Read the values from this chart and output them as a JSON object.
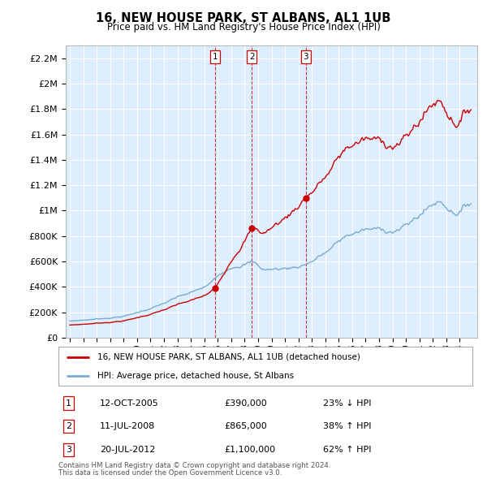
{
  "title": "16, NEW HOUSE PARK, ST ALBANS, AL1 1UB",
  "subtitle": "Price paid vs. HM Land Registry's House Price Index (HPI)",
  "hpi_label": "HPI: Average price, detached house, St Albans",
  "house_label": "16, NEW HOUSE PARK, ST ALBANS, AL1 1UB (detached house)",
  "transactions": [
    {
      "num": 1,
      "date": "12-OCT-2005",
      "year": 2005.79,
      "price": 390000,
      "pct": "23% ↓ HPI"
    },
    {
      "num": 2,
      "date": "11-JUL-2008",
      "year": 2008.53,
      "price": 865000,
      "pct": "38% ↑ HPI"
    },
    {
      "num": 3,
      "date": "20-JUL-2012",
      "year": 2012.55,
      "price": 1100000,
      "pct": "62% ↑ HPI"
    }
  ],
  "footnote1": "Contains HM Land Registry data © Crown copyright and database right 2024.",
  "footnote2": "This data is licensed under the Open Government Licence v3.0.",
  "house_color": "#cc0000",
  "hpi_color": "#7aaad0",
  "vline_color": "#cc0000",
  "bg_color": "#ffffff",
  "plot_bg_color": "#ddeeff",
  "grid_color": "#ffffff",
  "ylim": [
    0,
    2300000
  ],
  "yticks": [
    0,
    200000,
    400000,
    600000,
    800000,
    1000000,
    1200000,
    1400000,
    1600000,
    1800000,
    2000000,
    2200000
  ],
  "xlim_start": 1994.7,
  "xlim_end": 2025.3
}
